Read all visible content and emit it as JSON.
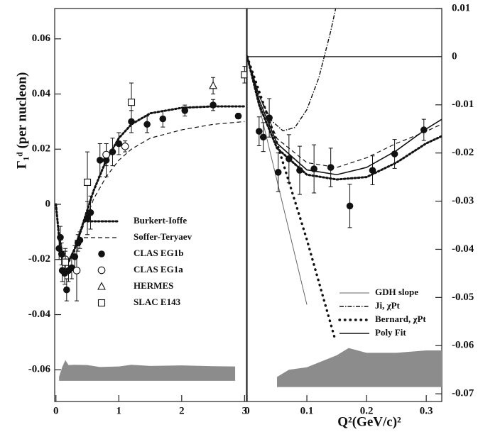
{
  "chart_data": [
    {
      "type": "scatter",
      "ylabel": "Γ₁ᵈ (per nucleon)",
      "xlim": [
        -0.02,
        3.03
      ],
      "ylim": [
        -0.0715,
        0.071
      ],
      "xticks": [
        0,
        1,
        2,
        3
      ],
      "yticks": [
        -0.06,
        -0.04,
        -0.02,
        0,
        0.02,
        0.04,
        0.06
      ],
      "y_axis_side": "left",
      "legend": "center",
      "series": [
        {
          "name": "Burkert-Ioffe",
          "kind": "line",
          "style": "dotted",
          "color": "#111",
          "x": [
            0,
            0.05,
            0.1,
            0.15,
            0.2,
            0.3,
            0.4,
            0.5,
            0.6,
            0.8,
            1.0,
            1.2,
            1.5,
            2.0,
            2.5,
            3.0
          ],
          "values": [
            0,
            -0.012,
            -0.02,
            -0.022,
            -0.021,
            -0.016,
            -0.009,
            -0.002,
            0.005,
            0.016,
            0.024,
            0.029,
            0.033,
            0.035,
            0.0355,
            0.0355
          ]
        },
        {
          "name": "Soffer-Teryaev",
          "kind": "line",
          "style": "dashed",
          "color": "#111",
          "x": [
            0,
            0.05,
            0.1,
            0.15,
            0.2,
            0.3,
            0.4,
            0.5,
            0.6,
            0.8,
            1.0,
            1.2,
            1.5,
            2.0,
            2.5,
            3.0
          ],
          "values": [
            0,
            -0.01,
            -0.017,
            -0.02,
            -0.02,
            -0.016,
            -0.01,
            -0.004,
            0.002,
            0.01,
            0.016,
            0.02,
            0.024,
            0.027,
            0.029,
            0.03
          ]
        },
        {
          "name": "CLAS EG1b",
          "kind": "points",
          "marker": "filled-circle",
          "color": "#111",
          "x": [
            0.05,
            0.07,
            0.09,
            0.1,
            0.14,
            0.17,
            0.2,
            0.25,
            0.3,
            0.35,
            0.38,
            0.5,
            0.55,
            0.7,
            0.8,
            0.9,
            1.0,
            1.2,
            1.45,
            1.7,
            2.05,
            2.5,
            2.9
          ],
          "values": [
            -0.016,
            -0.012,
            -0.018,
            -0.024,
            -0.025,
            -0.031,
            -0.024,
            -0.023,
            -0.019,
            -0.014,
            -0.013,
            -0.005,
            -0.003,
            0.016,
            0.016,
            0.019,
            0.022,
            0.03,
            0.029,
            0.031,
            0.034,
            0.036,
            0.032
          ],
          "errors": [
            0.004,
            0.004,
            0.004,
            0.004,
            0.004,
            0.004,
            0.004,
            0.004,
            0.004,
            0.003,
            0.003,
            0.006,
            0.006,
            0.006,
            0.006,
            0.005,
            0.004,
            0.004,
            0.003,
            0.003,
            0.002,
            0.002,
            0.001
          ]
        },
        {
          "name": "CLAS EG1a",
          "kind": "points",
          "marker": "open-circle",
          "color": "#111",
          "x": [
            0.15,
            0.33,
            0.8,
            1.1
          ],
          "values": [
            -0.02,
            -0.024,
            0.018,
            0.021
          ],
          "errors": [
            0.004,
            0.011,
            0.004,
            0.002
          ]
        },
        {
          "name": "HERMES",
          "kind": "points",
          "marker": "open-triangle",
          "color": "#111",
          "x": [
            2.5
          ],
          "values": [
            0.043
          ],
          "errors": [
            0.003
          ]
        },
        {
          "name": "SLAC E143",
          "kind": "points",
          "marker": "open-square",
          "color": "#111",
          "x": [
            0.15,
            0.5,
            1.2,
            3.0
          ],
          "values": [
            -0.021,
            0.008,
            0.037,
            0.047
          ],
          "errors": [
            0.004,
            0.011,
            0.007,
            0.003
          ]
        },
        {
          "kind": "band",
          "color": "#8c8c8c",
          "x": [
            0.05,
            0.1,
            0.15,
            0.2,
            0.3,
            0.5,
            0.7,
            1.0,
            1.2,
            1.5,
            2.0,
            2.5,
            2.85
          ],
          "values": [
            -0.0625,
            -0.059,
            -0.0565,
            -0.0583,
            -0.0582,
            -0.0583,
            -0.059,
            -0.0588,
            -0.0582,
            -0.0586,
            -0.0584,
            -0.0587,
            -0.0588
          ],
          "lower": [
            -0.064,
            -0.064,
            -0.064,
            -0.064,
            -0.064,
            -0.064,
            -0.064,
            -0.064,
            -0.064,
            -0.064,
            -0.064,
            -0.064,
            -0.064
          ]
        }
      ]
    },
    {
      "type": "scatter",
      "xlabel": "Q²(GeV/c)²",
      "xlim": [
        0,
        0.326
      ],
      "ylim": [
        -0.0716,
        0.01
      ],
      "xticks": [
        0,
        0.1,
        0.2,
        0.3
      ],
      "yticks": [
        0.01,
        0,
        -0.01,
        -0.02,
        -0.03,
        -0.04,
        -0.05,
        -0.06,
        -0.07
      ],
      "y_axis_side": "right",
      "legend": "lower-right",
      "zero_line": true,
      "series": [
        {
          "name": "GDH slope",
          "kind": "line",
          "style": "solid-thin",
          "color": "#666",
          "x": [
            0,
            0.1
          ],
          "values": [
            0,
            -0.0515
          ]
        },
        {
          "name": "Ji, χPt",
          "kind": "line",
          "style": "dashdot",
          "color": "#111",
          "x": [
            0,
            0.02,
            0.04,
            0.06,
            0.08,
            0.1,
            0.12,
            0.14,
            0.15
          ],
          "values": [
            0,
            -0.0081,
            -0.0132,
            -0.0154,
            -0.0147,
            -0.011,
            -0.0044,
            0.0053,
            0.011
          ]
        },
        {
          "name": "Bernard, χPt",
          "kind": "line",
          "style": "sparse-dotted",
          "color": "#111",
          "x": [
            0,
            0.05,
            0.1,
            0.148
          ],
          "values": [
            0,
            -0.018,
            -0.038,
            -0.059
          ]
        },
        {
          "name": "Poly Fit",
          "kind": "line",
          "style": "solid",
          "color": "#111",
          "x": [
            0,
            0.02,
            0.05,
            0.1,
            0.15,
            0.2,
            0.25,
            0.3,
            0.326
          ],
          "values": [
            0,
            -0.009,
            -0.018,
            -0.0235,
            -0.0245,
            -0.023,
            -0.0195,
            -0.015,
            -0.013
          ]
        },
        {
          "kind": "line",
          "style": "dotted",
          "color": "#111",
          "x": [
            0,
            0.02,
            0.05,
            0.1,
            0.15,
            0.2,
            0.25,
            0.3,
            0.326
          ],
          "values": [
            0,
            -0.01,
            -0.019,
            -0.0245,
            -0.0255,
            -0.025,
            -0.022,
            -0.018,
            -0.0165
          ]
        },
        {
          "kind": "line",
          "style": "dashed",
          "color": "#111",
          "x": [
            0,
            0.02,
            0.05,
            0.1,
            0.15,
            0.2,
            0.25,
            0.3,
            0.326
          ],
          "values": [
            0,
            -0.008,
            -0.017,
            -0.022,
            -0.023,
            -0.021,
            -0.018,
            -0.0155,
            -0.014
          ]
        },
        {
          "kind": "points",
          "marker": "filled-circle",
          "color": "#111",
          "x": [
            0.02,
            0.027,
            0.037,
            0.052,
            0.07,
            0.088,
            0.112,
            0.14,
            0.172,
            0.21,
            0.247,
            0.296
          ],
          "values": [
            -0.0155,
            -0.0167,
            -0.0127,
            -0.024,
            -0.0212,
            -0.0236,
            -0.0233,
            -0.023,
            -0.031,
            -0.0236,
            -0.0202,
            -0.0152
          ],
          "errors": [
            0.003,
            0.003,
            0.004,
            0.004,
            0.005,
            0.005,
            0.005,
            0.004,
            0.0045,
            0.003,
            0.003,
            0.0022
          ]
        },
        {
          "kind": "band",
          "color": "#8c8c8c",
          "x": [
            0.05,
            0.07,
            0.1,
            0.13,
            0.15,
            0.17,
            0.2,
            0.25,
            0.3,
            0.326
          ],
          "values": [
            -0.0665,
            -0.065,
            -0.0645,
            -0.063,
            -0.062,
            -0.0605,
            -0.0615,
            -0.0615,
            -0.061,
            -0.061
          ],
          "lower": [
            -0.0686,
            -0.0686,
            -0.0686,
            -0.0686,
            -0.0686,
            -0.0686,
            -0.0686,
            -0.0686,
            -0.0686,
            -0.0686
          ]
        }
      ]
    }
  ]
}
